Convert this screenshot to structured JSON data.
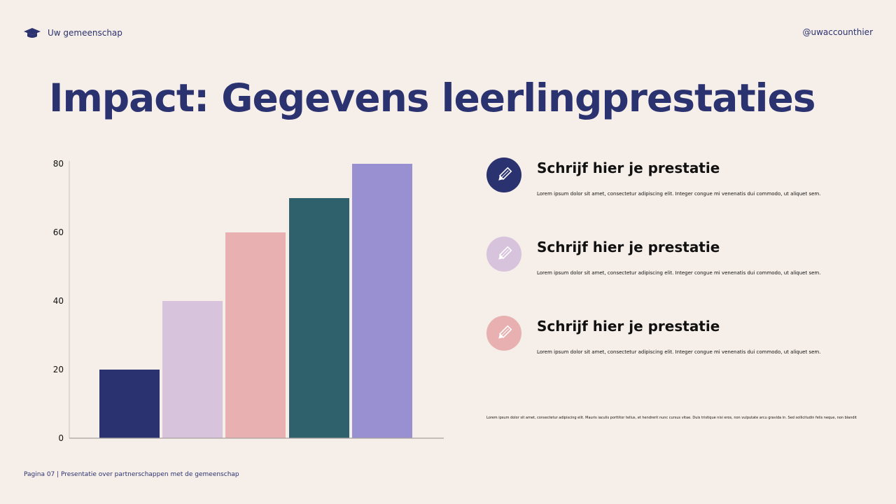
{
  "header": {
    "brand": "Uw gemeenschap",
    "handle": "@uwaccounthier",
    "brand_icon": "graduation-cap-icon"
  },
  "title": "Impact: Gegevens leerlingprestaties",
  "chart_data": {
    "type": "bar",
    "categories": [
      "",
      "",
      "",
      "",
      ""
    ],
    "values": [
      20,
      40,
      60,
      70,
      80
    ],
    "colors": [
      "#2b3270",
      "#d8c3dc",
      "#e8b0b0",
      "#2e616b",
      "#9890d0"
    ],
    "ylim": [
      0,
      80
    ],
    "yticks": [
      0,
      20,
      40,
      60,
      80
    ],
    "grid": false,
    "title": "",
    "xlabel": "",
    "ylabel": ""
  },
  "items": [
    {
      "title": "Schrijf hier je prestatie",
      "desc": "Lorem ipsum dolor sit amet, consectetur adipiscing elit. Integer congue mi venenatis dui commodo, ut aliquet sem.",
      "icon": "pencil-icon",
      "color": "#2b3270"
    },
    {
      "title": "Schrijf hier je prestatie",
      "desc": "Lorem ipsum dolor sit amet, consectetur adipiscing elit. Integer congue mi venenatis dui commodo, ut aliquet sem.",
      "icon": "pencil-icon",
      "color": "#d8c3dc"
    },
    {
      "title": "Schrijf hier je prestatie",
      "desc": "Lorem ipsum dolor sit amet, consectetur adipiscing elit. Integer congue mi venenatis dui commodo, ut aliquet sem.",
      "icon": "pencil-icon",
      "color": "#e8b0b0"
    }
  ],
  "note": "Lorem ipsum dolor sit amet, consectetur adipiscing elit. Mauris iaculis porttitor tellus, et hendrerit nunc cursus vitae. Duis tristique nisi eros, non vulputate arcu gravida in. Sed sollicitudin felis neque, non blandit",
  "footer": "Pagina 07 | Presentatie over partnerschappen met de gemeenschap"
}
